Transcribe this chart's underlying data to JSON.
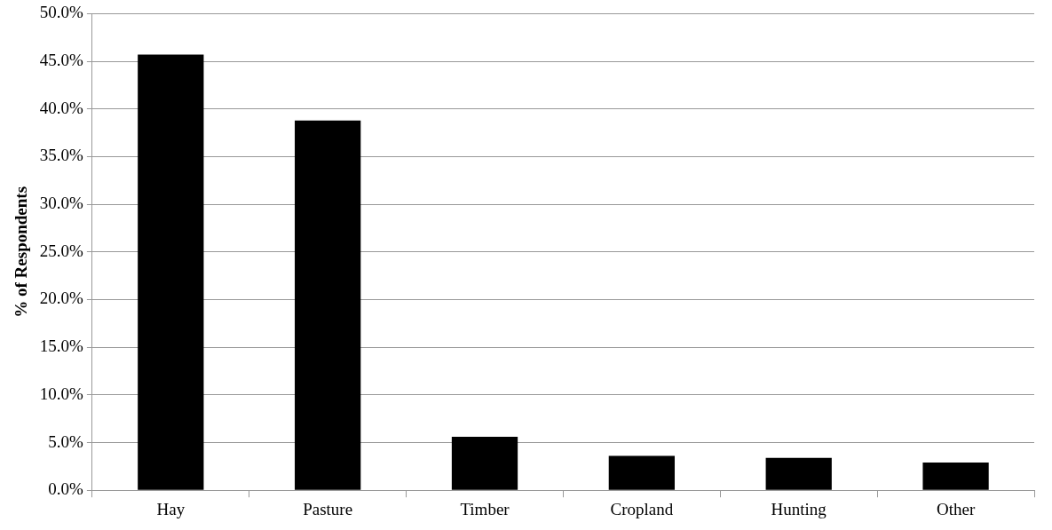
{
  "chart_data": {
    "type": "bar",
    "ylabel": "% of Respondents",
    "categories": [
      "Hay",
      "Pasture",
      "Timber",
      "Cropland",
      "Hunting",
      "Other"
    ],
    "values": [
      45.7,
      38.8,
      5.6,
      3.6,
      3.4,
      2.9
    ],
    "color": "#000000",
    "ylim": [
      0,
      50
    ],
    "yticks": [
      {
        "value": 0,
        "label": "0.0%"
      },
      {
        "value": 5,
        "label": "5.0%"
      },
      {
        "value": 10,
        "label": "10.0%"
      },
      {
        "value": 15,
        "label": "15.0%"
      },
      {
        "value": 20,
        "label": "20.0%"
      },
      {
        "value": 25,
        "label": "25.0%"
      },
      {
        "value": 30,
        "label": "30.0%"
      },
      {
        "value": 35,
        "label": "35.0%"
      },
      {
        "value": 40,
        "label": "40.0%"
      },
      {
        "value": 45,
        "label": "45.0%"
      },
      {
        "value": 50,
        "label": "50.0%"
      }
    ],
    "grid": "y",
    "legend": false
  }
}
